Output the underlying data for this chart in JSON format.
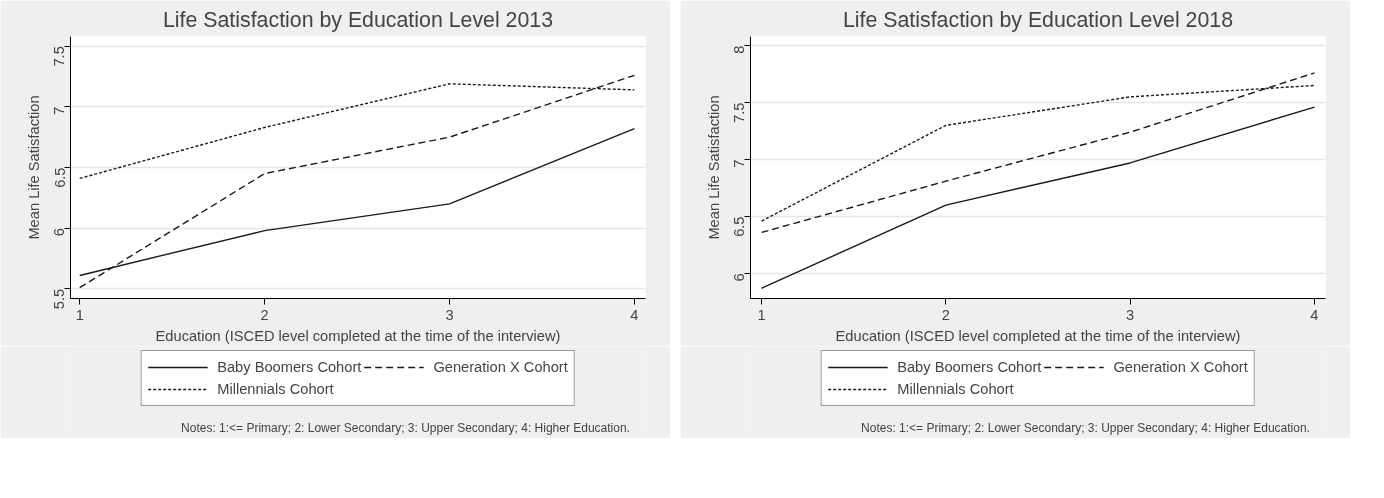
{
  "chart_data": [
    {
      "type": "line",
      "title": "Life Satisfaction by Education Level 2013",
      "xlabel": "Education (ISCED level completed at the time of the interview)",
      "ylabel": "Mean Life Satisfaction",
      "x": [
        1,
        2,
        3,
        4
      ],
      "xlim": [
        0.95,
        4.06
      ],
      "xticks": [
        1,
        2,
        3,
        4
      ],
      "ylim": [
        5.42,
        7.58
      ],
      "yticks": [
        5.5,
        6,
        6.5,
        7,
        7.5
      ],
      "grid": "y",
      "legend": "bottom",
      "series": [
        {
          "name": "Baby Boomers Cohort",
          "color": "#1a1a1a",
          "line_style": "solid",
          "values": [
            5.61,
            5.98,
            6.2,
            6.82
          ]
        },
        {
          "name": "Generation X Cohort",
          "color": "#1a1a1a",
          "line_style": "dashed",
          "values": [
            5.51,
            6.45,
            6.75,
            7.26
          ]
        },
        {
          "name": "Millennials Cohort",
          "color": "#1a1a1a",
          "line_style": "dotted",
          "values": [
            6.41,
            6.83,
            7.19,
            7.14
          ]
        }
      ],
      "annotations": [
        "Notes: 1:<= Primary; 2: Lower Secondary; 3: Upper Secondary; 4: Higher Education."
      ]
    },
    {
      "type": "line",
      "title": "Life Satisfaction by Education Level 2018",
      "xlabel": "Education (ISCED level completed at the time of the interview)",
      "ylabel": "Mean Life Satisfaction",
      "x": [
        1,
        2,
        3,
        4
      ],
      "xlim": [
        0.94,
        4.06
      ],
      "xticks": [
        1,
        2,
        3,
        4
      ],
      "ylim": [
        5.78,
        8.08
      ],
      "yticks": [
        6,
        6.5,
        7,
        7.5,
        8
      ],
      "grid": "y",
      "legend": "bottom",
      "series": [
        {
          "name": "Baby Boomers Cohort",
          "color": "#1a1a1a",
          "line_style": "solid",
          "values": [
            5.87,
            6.6,
            6.97,
            7.46
          ]
        },
        {
          "name": "Generation X Cohort",
          "color": "#1a1a1a",
          "line_style": "dashed",
          "values": [
            6.36,
            6.81,
            7.24,
            7.76
          ]
        },
        {
          "name": "Millennials Cohort",
          "color": "#1a1a1a",
          "line_style": "dotted",
          "values": [
            6.46,
            7.3,
            7.55,
            7.65
          ]
        }
      ],
      "annotations": [
        "Notes: 1:<= Primary; 2: Lower Secondary; 3: Upper Secondary; 4: Higher Education."
      ]
    }
  ]
}
